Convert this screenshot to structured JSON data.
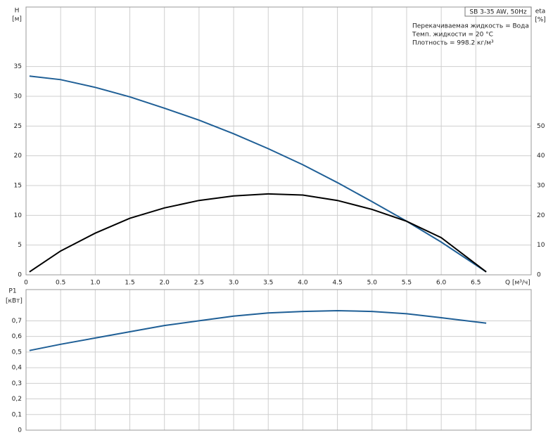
{
  "chart_data": [
    {
      "type": "line",
      "y_label": "H",
      "y_unit": "[м]",
      "y2_label": "eta",
      "y2_unit": "[%]",
      "x_label": "Q [м³/ч]",
      "model": "SB 3-35 AW, 50Hz",
      "notes": [
        "Перекачиваемая жидкость = Вода",
        "Темп. жидкости = 20 °C",
        "Плотность = 998.2 кг/м³"
      ],
      "x": [
        0.05,
        0.5,
        1.0,
        1.5,
        2.0,
        2.5,
        3.0,
        3.5,
        4.0,
        4.5,
        5.0,
        5.5,
        6.0,
        6.65
      ],
      "series": [
        {
          "color": "#1f5f96",
          "values": [
            33.4,
            32.8,
            31.5,
            29.9,
            28.0,
            26.0,
            23.7,
            21.2,
            18.5,
            15.5,
            12.3,
            9.0,
            5.5,
            0.5
          ]
        },
        {
          "color": "#000000",
          "axis": "y2",
          "values": [
            1,
            8,
            14,
            19,
            22.5,
            25,
            26.5,
            27.2,
            26.8,
            25,
            22,
            18,
            12.5,
            1
          ]
        }
      ],
      "xlim": [
        0,
        7.3
      ],
      "xticks": [
        0,
        0.5,
        {
          "value": 1,
          "label": "1.0"
        },
        1.5,
        {
          "value": 2,
          "label": "2.0"
        },
        2.5,
        {
          "value": 3,
          "label": "3.0"
        },
        3.5,
        {
          "value": 4,
          "label": "4.0"
        },
        4.5,
        {
          "value": 5,
          "label": "5.0"
        },
        5.5,
        {
          "value": 6,
          "label": "6.0"
        },
        6.5
      ],
      "ylim": [
        0,
        45
      ],
      "yticks": [
        0,
        5,
        10,
        15,
        20,
        25,
        30,
        35
      ],
      "y2lim": [
        0,
        90
      ],
      "y2ticks": [
        0,
        10,
        20,
        30,
        40,
        50
      ],
      "grid": true,
      "xtick_labels": true
    },
    {
      "type": "line",
      "y_label": "P1",
      "y_unit": "[кВт]",
      "x": [
        0.05,
        0.5,
        1.0,
        1.5,
        2.0,
        2.5,
        3.0,
        3.5,
        4.0,
        4.5,
        5.0,
        5.5,
        6.0,
        6.65
      ],
      "series": [
        {
          "color": "#1f5f96",
          "values": [
            0.51,
            0.55,
            0.59,
            0.63,
            0.67,
            0.7,
            0.73,
            0.75,
            0.76,
            0.765,
            0.76,
            0.745,
            0.72,
            0.685
          ]
        }
      ],
      "xlim": [
        0,
        7.3
      ],
      "xticks": [
        0,
        0.5,
        1,
        1.5,
        2,
        2.5,
        3,
        3.5,
        4,
        4.5,
        5,
        5.5,
        6,
        6.5
      ],
      "ylim": [
        0,
        0.9
      ],
      "yticks": [
        0,
        {
          "value": 0.1,
          "label": "0,1"
        },
        {
          "value": 0.2,
          "label": "0,2"
        },
        {
          "value": 0.3,
          "label": "0,3"
        },
        {
          "value": 0.4,
          "label": "0,4"
        },
        {
          "value": 0.5,
          "label": "0,5"
        },
        {
          "value": 0.6,
          "label": "0,6"
        },
        {
          "value": 0.7,
          "label": "0,7"
        }
      ],
      "grid": true,
      "xtick_labels": false
    }
  ]
}
